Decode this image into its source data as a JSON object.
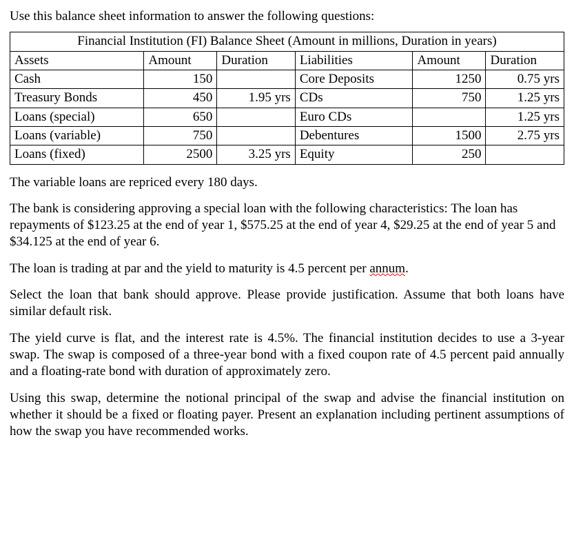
{
  "intro": "Use this balance sheet information to answer the following questions:",
  "table": {
    "title": "Financial Institution (FI) Balance Sheet (Amount in millions, Duration in years)",
    "headers": {
      "assets": "Assets",
      "amount1": "Amount",
      "duration1": "Duration",
      "liabilities": "Liabilities",
      "amount2": "Amount",
      "duration2": "Duration"
    },
    "rows": [
      {
        "a": "Cash",
        "am1": "150",
        "d1": "",
        "l": "Core Deposits",
        "am2": "1250",
        "d2": "0.75 yrs"
      },
      {
        "a": "Treasury Bonds",
        "am1": "450",
        "d1": "1.95 yrs",
        "l": "CDs",
        "am2": "750",
        "d2": "1.25 yrs"
      },
      {
        "a": "Loans (special)",
        "am1": "650",
        "d1": "",
        "l": "Euro CDs",
        "am2": "",
        "d2": "1.25 yrs"
      },
      {
        "a": "Loans (variable)",
        "am1": "750",
        "d1": "",
        "l": "Debentures",
        "am2": "1500",
        "d2": "2.75 yrs"
      },
      {
        "a": "Loans (fixed)",
        "am1": "2500",
        "d1": "3.25 yrs",
        "l": "Equity",
        "am2": "250",
        "d2": ""
      }
    ]
  },
  "p1": "The variable loans are repriced every 180 days.",
  "p2": "The bank is considering approving a special loan with the following characteristics: The loan has repayments of $123.25 at the end of year 1, $575.25 at the end of year 4, $29.25 at the end of year 5 and $34.125 at the end of year 6.",
  "p3a": "The loan is trading at par and the yield to maturity is 4.5 percent per ",
  "p3b": "annum",
  "p3c": ".",
  "p4": "Select the loan that bank should approve. Please provide justification. Assume that both loans have similar default risk.",
  "p5": "The yield curve is flat, and the interest rate is 4.5%. The financial institution decides to use a 3-year swap. The swap is composed of a three-year bond with a fixed coupon rate of 4.5 percent paid annually and a floating-rate bond with duration of approximately zero.",
  "p6": "Using this swap, determine the notional principal of the swap and advise the financial institution on whether it should be a fixed or floating payer. Present an explanation including pertinent assumptions of how the swap you have recommended works."
}
